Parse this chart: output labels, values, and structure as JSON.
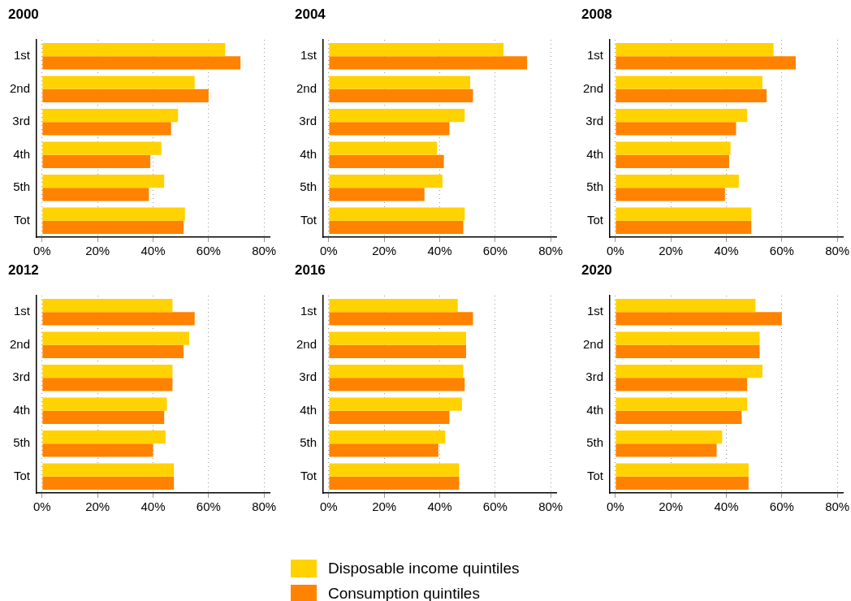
{
  "chart_data": [
    {
      "type": "bar",
      "orientation": "horizontal",
      "title": "2000",
      "categories": [
        "1st",
        "2nd",
        "3rd",
        "4th",
        "5th",
        "Tot"
      ],
      "xlim": [
        -2,
        82
      ],
      "xticks": [
        {
          "value": 0,
          "label": "0%"
        },
        {
          "value": 20,
          "label": "20%"
        },
        {
          "value": 40,
          "label": "40%"
        },
        {
          "value": 60,
          "label": "60%"
        },
        {
          "value": 80,
          "label": "80%"
        }
      ],
      "grid": "x",
      "legend": false,
      "series": [
        {
          "color": "#ffd200",
          "values": [
            66,
            55,
            49,
            43,
            44,
            51.5
          ]
        },
        {
          "color": "#ff8200",
          "values": [
            71.5,
            60,
            46.5,
            39,
            38.5,
            51
          ]
        }
      ]
    },
    {
      "type": "bar",
      "orientation": "horizontal",
      "title": "2004",
      "categories": [
        "1st",
        "2nd",
        "3rd",
        "4th",
        "5th",
        "Tot"
      ],
      "xlim": [
        -2,
        82
      ],
      "xticks": [
        {
          "value": 0,
          "label": "0%"
        },
        {
          "value": 20,
          "label": "20%"
        },
        {
          "value": 40,
          "label": "40%"
        },
        {
          "value": 60,
          "label": "60%"
        },
        {
          "value": 80,
          "label": "80%"
        }
      ],
      "grid": "x",
      "legend": false,
      "series": [
        {
          "color": "#ffd200",
          "values": [
            63,
            51,
            49,
            39,
            41,
            49
          ]
        },
        {
          "color": "#ff8200",
          "values": [
            71.5,
            52,
            43.5,
            41.5,
            34.5,
            48.5
          ]
        }
      ]
    },
    {
      "type": "bar",
      "orientation": "horizontal",
      "title": "2008",
      "categories": [
        "1st",
        "2nd",
        "3rd",
        "4th",
        "5th",
        "Tot"
      ],
      "xlim": [
        -2,
        82
      ],
      "xticks": [
        {
          "value": 0,
          "label": "0%"
        },
        {
          "value": 20,
          "label": "20%"
        },
        {
          "value": 40,
          "label": "40%"
        },
        {
          "value": 60,
          "label": "60%"
        },
        {
          "value": 80,
          "label": "80%"
        }
      ],
      "grid": "x",
      "legend": false,
      "series": [
        {
          "color": "#ffd200",
          "values": [
            57,
            53,
            47.5,
            41.5,
            44.5,
            49
          ]
        },
        {
          "color": "#ff8200",
          "values": [
            65,
            54.5,
            43.5,
            41,
            39.5,
            49
          ]
        }
      ]
    },
    {
      "type": "bar",
      "orientation": "horizontal",
      "title": "2012",
      "categories": [
        "1st",
        "2nd",
        "3rd",
        "4th",
        "5th",
        "Tot"
      ],
      "xlim": [
        -2,
        82
      ],
      "xticks": [
        {
          "value": 0,
          "label": "0%"
        },
        {
          "value": 20,
          "label": "20%"
        },
        {
          "value": 40,
          "label": "40%"
        },
        {
          "value": 60,
          "label": "60%"
        },
        {
          "value": 80,
          "label": "80%"
        }
      ],
      "grid": "x",
      "legend": false,
      "series": [
        {
          "color": "#ffd200",
          "values": [
            47,
            53,
            47,
            45,
            44.5,
            47.5
          ]
        },
        {
          "color": "#ff8200",
          "values": [
            55,
            51,
            47,
            44,
            40,
            47.5
          ]
        }
      ]
    },
    {
      "type": "bar",
      "orientation": "horizontal",
      "title": "2016",
      "categories": [
        "1st",
        "2nd",
        "3rd",
        "4th",
        "5th",
        "Tot"
      ],
      "xlim": [
        -2,
        82
      ],
      "xticks": [
        {
          "value": 0,
          "label": "0%"
        },
        {
          "value": 20,
          "label": "20%"
        },
        {
          "value": 40,
          "label": "40%"
        },
        {
          "value": 60,
          "label": "60%"
        },
        {
          "value": 80,
          "label": "80%"
        }
      ],
      "grid": "x",
      "legend": false,
      "series": [
        {
          "color": "#ffd200",
          "values": [
            46.5,
            49.5,
            48.5,
            48,
            42,
            47
          ]
        },
        {
          "color": "#ff8200",
          "values": [
            52,
            49.5,
            49,
            43.5,
            39.5,
            47
          ]
        }
      ]
    },
    {
      "type": "bar",
      "orientation": "horizontal",
      "title": "2020",
      "categories": [
        "1st",
        "2nd",
        "3rd",
        "4th",
        "5th",
        "Tot"
      ],
      "xlim": [
        -2,
        82
      ],
      "xticks": [
        {
          "value": 0,
          "label": "0%"
        },
        {
          "value": 20,
          "label": "20%"
        },
        {
          "value": 40,
          "label": "40%"
        },
        {
          "value": 60,
          "label": "60%"
        },
        {
          "value": 80,
          "label": "80%"
        }
      ],
      "grid": "x",
      "legend": "bottom",
      "series": [
        {
          "name": "Disposable income quintiles",
          "color": "#ffd200",
          "values": [
            50.5,
            52,
            53,
            47.5,
            38.5,
            48
          ]
        },
        {
          "name": "Consumption quintiles",
          "color": "#ff8200",
          "values": [
            60,
            52,
            47.5,
            45.5,
            36.5,
            48
          ]
        }
      ]
    }
  ]
}
